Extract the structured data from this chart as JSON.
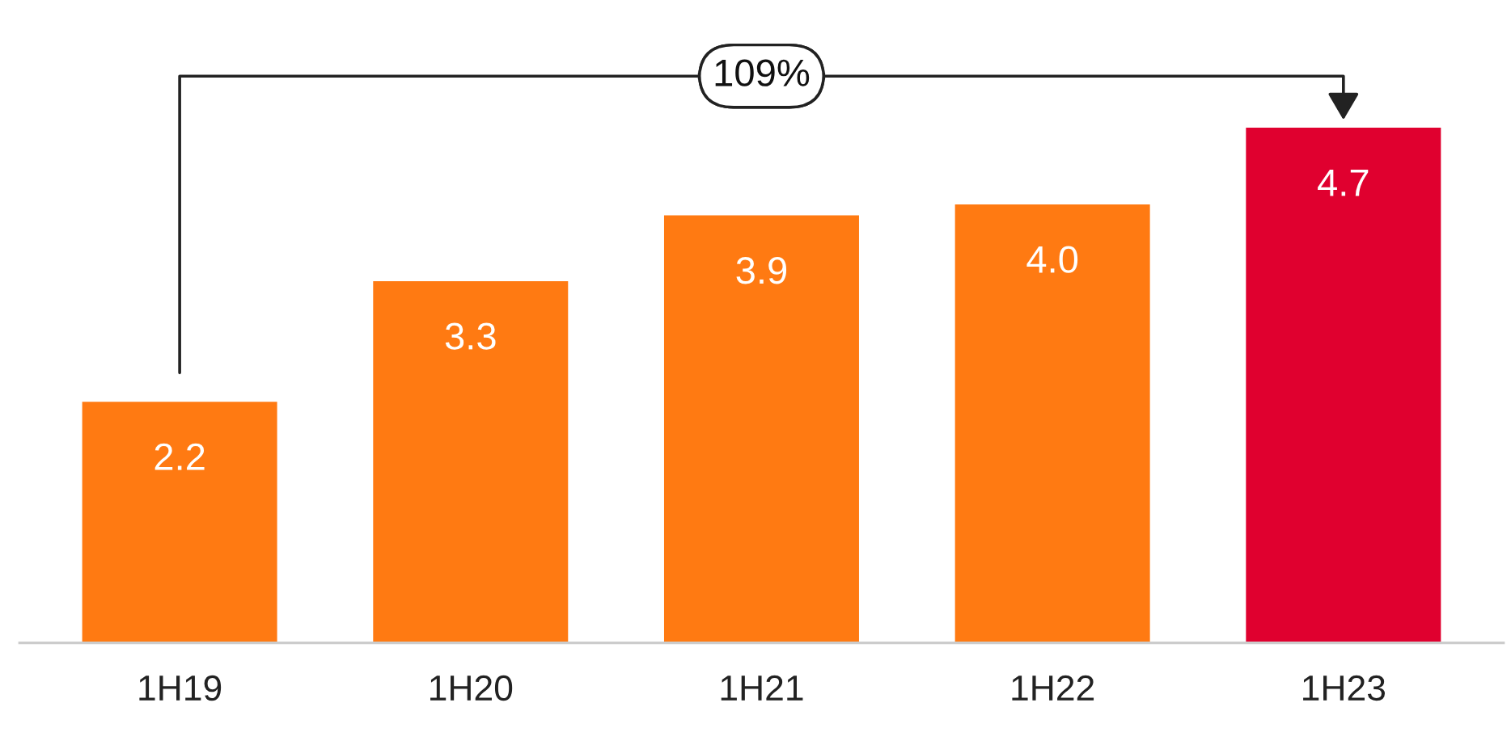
{
  "chart_data": {
    "type": "bar",
    "categories": [
      "1H19",
      "1H20",
      "1H21",
      "1H22",
      "1H23"
    ],
    "values": [
      2.2,
      3.3,
      3.9,
      4.0,
      4.7
    ],
    "colors": [
      "#ff7a12",
      "#ff7a12",
      "#ff7a12",
      "#ff7a12",
      "#e0002f"
    ],
    "value_labels": [
      "2.2",
      "3.3",
      "3.9",
      "4.0",
      "4.7"
    ],
    "annotations": [
      "109%"
    ],
    "grid": false,
    "legend": false
  }
}
